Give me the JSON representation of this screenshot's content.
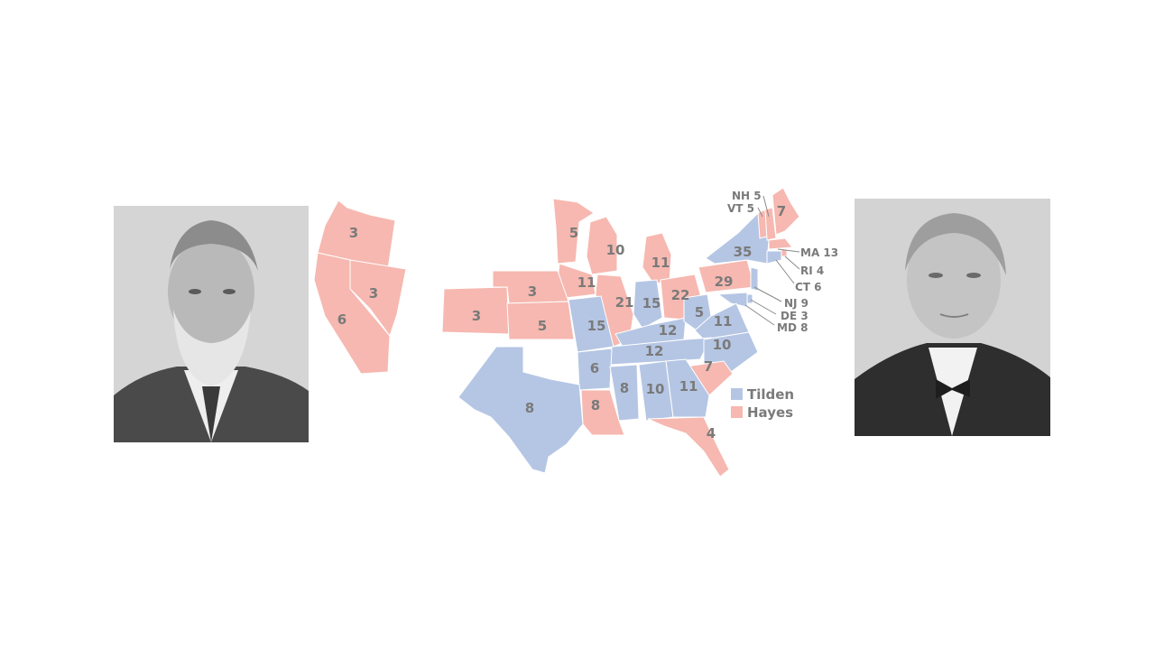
{
  "map": {
    "legend": [
      {
        "name": "Tilden",
        "color": "#b5c6e4"
      },
      {
        "name": "Hayes",
        "color": "#f6b8b0"
      }
    ],
    "west_states": [
      {
        "name": "Oregon",
        "votes": "3",
        "party": "Hayes"
      },
      {
        "name": "Nevada",
        "votes": "3",
        "party": "Hayes"
      },
      {
        "name": "California",
        "votes": "6",
        "party": "Hayes"
      }
    ],
    "states": [
      {
        "name": "Minnesota",
        "votes": "5",
        "party": "Hayes"
      },
      {
        "name": "Wisconsin",
        "votes": "10",
        "party": "Hayes"
      },
      {
        "name": "Michigan",
        "votes": "11",
        "party": "Hayes"
      },
      {
        "name": "Iowa",
        "votes": "11",
        "party": "Hayes"
      },
      {
        "name": "Nebraska",
        "votes": "3",
        "party": "Hayes"
      },
      {
        "name": "Colorado",
        "votes": "3",
        "party": "Hayes"
      },
      {
        "name": "Kansas",
        "votes": "5",
        "party": "Hayes"
      },
      {
        "name": "Illinois",
        "votes": "21",
        "party": "Hayes"
      },
      {
        "name": "Indiana",
        "votes": "15",
        "party": "Tilden"
      },
      {
        "name": "Ohio",
        "votes": "22",
        "party": "Hayes"
      },
      {
        "name": "Pennsylvania",
        "votes": "29",
        "party": "Hayes"
      },
      {
        "name": "New York",
        "votes": "35",
        "party": "Tilden"
      },
      {
        "name": "Maine",
        "votes": "7",
        "party": "Hayes"
      },
      {
        "name": "Missouri",
        "votes": "15",
        "party": "Tilden"
      },
      {
        "name": "Kentucky",
        "votes": "12",
        "party": "Tilden"
      },
      {
        "name": "West Virginia",
        "votes": "5",
        "party": "Tilden"
      },
      {
        "name": "Virginia",
        "votes": "11",
        "party": "Tilden"
      },
      {
        "name": "Tennessee",
        "votes": "12",
        "party": "Tilden"
      },
      {
        "name": "North Carolina",
        "votes": "10",
        "party": "Tilden"
      },
      {
        "name": "Arkansas",
        "votes": "6",
        "party": "Tilden"
      },
      {
        "name": "South Carolina",
        "votes": "7",
        "party": "Hayes"
      },
      {
        "name": "Mississippi",
        "votes": "8",
        "party": "Tilden"
      },
      {
        "name": "Alabama",
        "votes": "10",
        "party": "Tilden"
      },
      {
        "name": "Georgia",
        "votes": "11",
        "party": "Tilden"
      },
      {
        "name": "Texas",
        "votes": "8",
        "party": "Tilden"
      },
      {
        "name": "Louisiana",
        "votes": "8",
        "party": "Hayes"
      },
      {
        "name": "Florida",
        "votes": "4",
        "party": "Hayes"
      }
    ],
    "small_states": [
      {
        "label": "NH 5",
        "party": "Hayes"
      },
      {
        "label": "VT 5",
        "party": "Hayes"
      },
      {
        "label": "MA 13",
        "party": "Hayes"
      },
      {
        "label": "RI 4",
        "party": "Hayes"
      },
      {
        "label": "CT 6",
        "party": "Tilden"
      },
      {
        "label": "NJ 9",
        "party": "Tilden"
      },
      {
        "label": "DE 3",
        "party": "Tilden"
      },
      {
        "label": "MD 8",
        "party": "Tilden"
      }
    ]
  }
}
